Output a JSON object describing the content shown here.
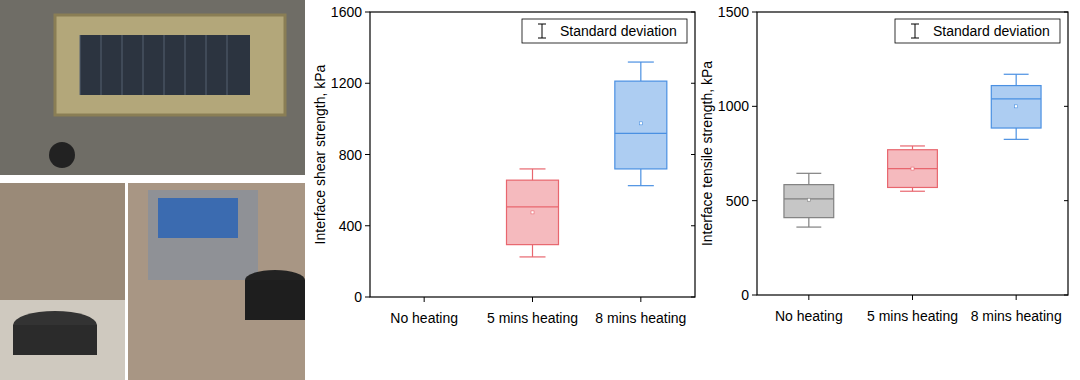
{
  "chart_data": [
    {
      "type": "box",
      "y_label": "Interface shear strength, kPa",
      "categories": [
        "No heating",
        "5 mins heating",
        "8 mins heating"
      ],
      "whisker_low": [
        null,
        225,
        625
      ],
      "q1": [
        null,
        294,
        719
      ],
      "median": [
        null,
        506,
        919
      ],
      "q3": [
        null,
        656,
        1212
      ],
      "whisker_high": [
        null,
        719,
        1319
      ],
      "mean": [
        null,
        475,
        975
      ],
      "colors": [
        null,
        "#e8666e",
        "#4a90e2"
      ],
      "ylim": [
        0,
        1600
      ],
      "yticks": [
        0,
        400,
        800,
        1200,
        1600
      ],
      "legend": "upper right",
      "legend_text": "Standard deviation",
      "grid": false
    },
    {
      "type": "box",
      "y_label": "Interface tensile strength, kPa",
      "categories": [
        "No heating",
        "5 mins heating",
        "8 mins heating"
      ],
      "whisker_low": [
        360,
        550,
        825
      ],
      "q1": [
        410,
        570,
        885
      ],
      "median": [
        510,
        670,
        1040
      ],
      "q3": [
        585,
        770,
        1110
      ],
      "whisker_high": [
        645,
        790,
        1170
      ],
      "mean": [
        505,
        670,
        1000
      ],
      "colors": [
        "#808080",
        "#e8666e",
        "#4a90e2"
      ],
      "ylim": [
        0,
        1500
      ],
      "yticks": [
        0,
        500,
        1000,
        1500
      ],
      "legend": "upper right",
      "legend_text": "Standard deviation",
      "grid": false
    }
  ]
}
